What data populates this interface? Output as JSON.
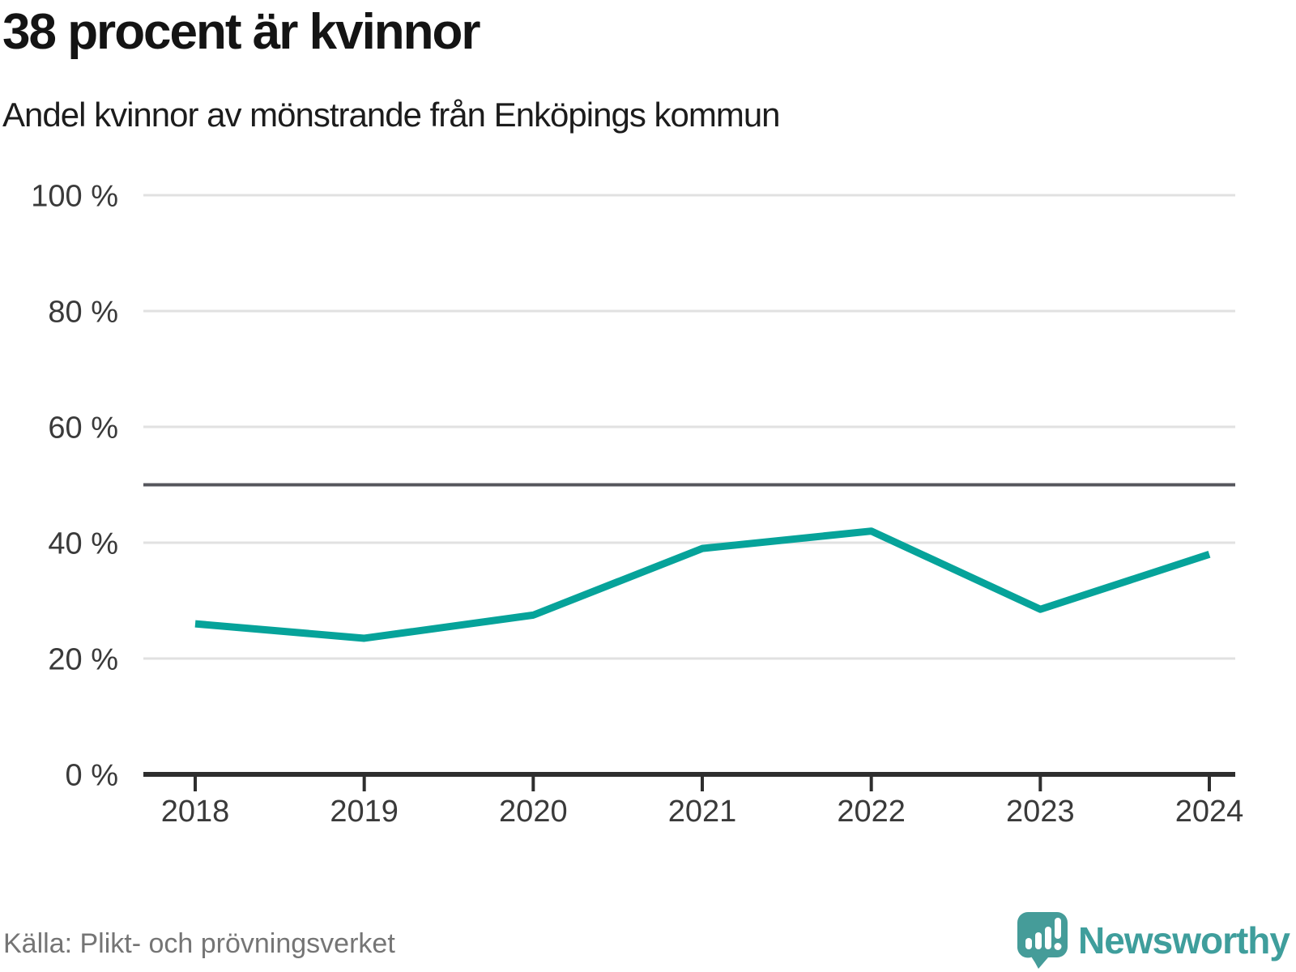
{
  "header": {
    "title": "38 procent är kvinnor",
    "subtitle": "Andel kvinnor av mönstrande från Enköpings kommun"
  },
  "chart_data": {
    "type": "line",
    "title": "38 procent är kvinnor",
    "subtitle": "Andel kvinnor av mönstrande från Enköpings kommun",
    "categories": [
      "2018",
      "2019",
      "2020",
      "2021",
      "2022",
      "2023",
      "2024"
    ],
    "series": [
      {
        "name": "Andel kvinnor av mönstrande",
        "values": [
          26,
          23.5,
          27.5,
          39,
          42,
          28.5,
          38
        ]
      }
    ],
    "unit": "%",
    "ylim": [
      0,
      100
    ],
    "yticks": [
      0,
      20,
      40,
      60,
      80,
      100
    ],
    "ytick_suffix": " %",
    "reference_line": 50,
    "grid": true,
    "legend": "none",
    "colors": {
      "line": "#06a39a",
      "reference_line": "#55565c",
      "gridline": "#e1e1e1",
      "axis": "#2e2e2e",
      "tick_label": "#3a3a3a"
    }
  },
  "footer": {
    "source": "Källa: Plikt- och prövningsverket",
    "logo": {
      "text": "Newsworthy",
      "icon": "newsworthy-speech-bubble-bar-chart-icon",
      "color": "#3f9e9c",
      "icon_color": "#459c99"
    }
  }
}
